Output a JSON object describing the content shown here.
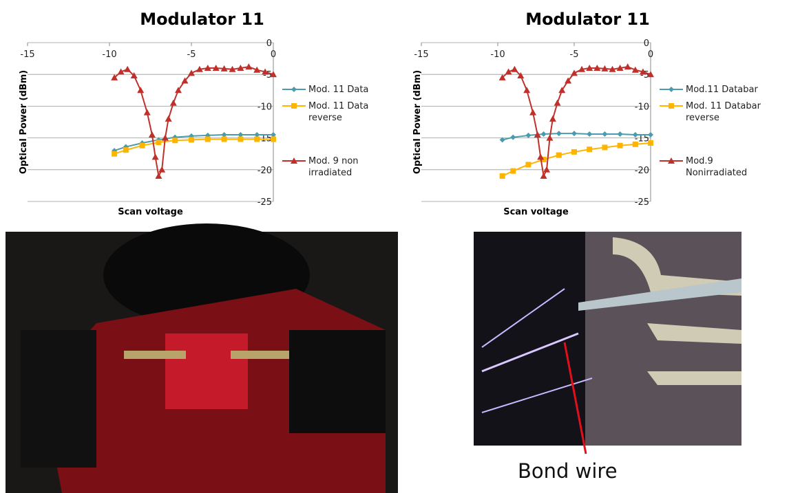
{
  "chart_data": [
    {
      "type": "line",
      "title": "Modulator 11",
      "x_label": "Scan voltage",
      "y_label": "Optical Power (dBm)",
      "xlim": [
        -15,
        0
      ],
      "xticks": [
        -15,
        -10,
        -5,
        0
      ],
      "ylim": [
        -25,
        0
      ],
      "yticks": [
        0,
        -5,
        -10,
        -15,
        -20,
        -25
      ],
      "grid": true,
      "legend": "right",
      "series": [
        {
          "name": "Mod. 11 Data",
          "color": "#4a9bad",
          "marker": "diamond",
          "x": [
            -9.7,
            -9,
            -8,
            -7,
            -6,
            -5,
            -4,
            -3,
            -2,
            -1,
            0
          ],
          "values": [
            -17.0,
            -16.4,
            -15.8,
            -15.3,
            -14.9,
            -14.7,
            -14.6,
            -14.5,
            -14.5,
            -14.5,
            -14.5
          ]
        },
        {
          "name": "Mod. 11 Data reverse",
          "color": "#ffb400",
          "marker": "square",
          "x": [
            -9.7,
            -9,
            -8,
            -7,
            -6,
            -5,
            -4,
            -3,
            -2,
            -1,
            0
          ],
          "values": [
            -17.5,
            -16.9,
            -16.2,
            -15.7,
            -15.4,
            -15.3,
            -15.2,
            -15.2,
            -15.2,
            -15.2,
            -15.2
          ]
        },
        {
          "name": "Mod. 9 non irradiated",
          "color": "#c0302a",
          "marker": "triangle",
          "x": [
            -9.7,
            -9.3,
            -8.9,
            -8.5,
            -8.1,
            -7.7,
            -7.4,
            -7.2,
            -7.0,
            -6.8,
            -6.6,
            -6.4,
            -6.1,
            -5.8,
            -5.4,
            -5,
            -4.5,
            -4,
            -3.5,
            -3,
            -2.5,
            -2,
            -1.5,
            -1,
            -0.5,
            0
          ],
          "values": [
            -5.5,
            -4.6,
            -4.2,
            -5.2,
            -7.5,
            -11,
            -14.5,
            -18,
            -21,
            -20,
            -15,
            -12,
            -9.5,
            -7.5,
            -6,
            -4.8,
            -4.2,
            -4,
            -4,
            -4.1,
            -4.2,
            -4,
            -3.8,
            -4.3,
            -4.6,
            -5
          ]
        }
      ]
    },
    {
      "type": "line",
      "title": "Modulator 11",
      "x_label": "Scan voltage",
      "y_label": "Optical Power (dBm)",
      "xlim": [
        -15,
        0
      ],
      "xticks": [
        -15,
        -10,
        -5,
        0
      ],
      "ylim": [
        -25,
        0
      ],
      "yticks": [
        0,
        -5,
        -10,
        -15,
        -20,
        -25
      ],
      "grid": true,
      "legend": "right",
      "series": [
        {
          "name": "Mod.11 Databar",
          "color": "#4a9bad",
          "marker": "diamond",
          "x": [
            -9.7,
            -9,
            -8,
            -7,
            -6,
            -5,
            -4,
            -3,
            -2,
            -1,
            0
          ],
          "values": [
            -15.3,
            -14.9,
            -14.6,
            -14.4,
            -14.3,
            -14.3,
            -14.4,
            -14.4,
            -14.4,
            -14.5,
            -14.5
          ]
        },
        {
          "name": "Mod. 11 Databar reverse",
          "color": "#ffb400",
          "marker": "square",
          "x": [
            -9.7,
            -9,
            -8,
            -7,
            -6,
            -5,
            -4,
            -3,
            -2,
            -1,
            0
          ],
          "values": [
            -21,
            -20.2,
            -19.2,
            -18.4,
            -17.7,
            -17.2,
            -16.8,
            -16.5,
            -16.2,
            -16,
            -15.8
          ]
        },
        {
          "name": "Mod.9 Nonirradiated",
          "color": "#c0302a",
          "marker": "triangle",
          "x": [
            -9.7,
            -9.3,
            -8.9,
            -8.5,
            -8.1,
            -7.7,
            -7.4,
            -7.2,
            -7.0,
            -6.8,
            -6.6,
            -6.4,
            -6.1,
            -5.8,
            -5.4,
            -5,
            -4.5,
            -4,
            -3.5,
            -3,
            -2.5,
            -2,
            -1.5,
            -1,
            -0.5,
            0
          ],
          "values": [
            -5.5,
            -4.6,
            -4.2,
            -5.2,
            -7.5,
            -11,
            -14.5,
            -18,
            -21,
            -20,
            -15,
            -12,
            -9.5,
            -7.5,
            -6,
            -4.8,
            -4.2,
            -4,
            -4,
            -4.1,
            -4.2,
            -4,
            -3.8,
            -4.3,
            -4.6,
            -5
          ]
        }
      ]
    }
  ],
  "photos": {
    "caption": "Bond wire"
  }
}
